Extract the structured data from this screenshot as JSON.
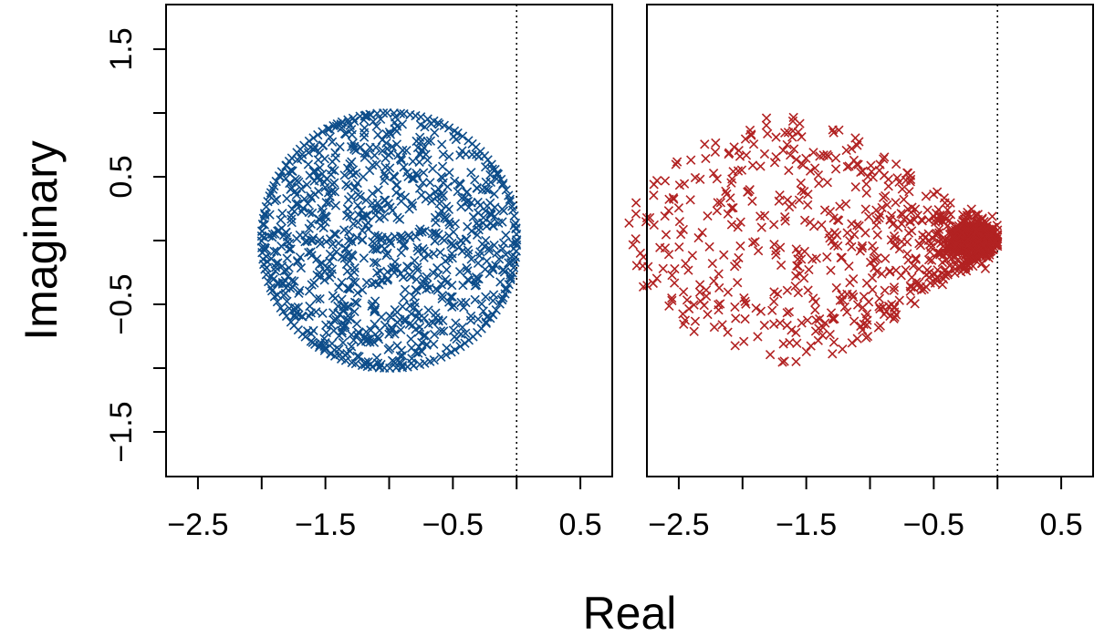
{
  "chart_data": {
    "type": "scatter",
    "xlabel": "Real",
    "ylabel": "Imaginary",
    "marker": "x",
    "panels": [
      {
        "xlim": [
          -2.75,
          0.75
        ],
        "ylim": [
          -1.85,
          1.85
        ],
        "x_ticks": [
          -2.5,
          -2,
          -1.5,
          -1,
          -0.5,
          0,
          0.5
        ],
        "x_tick_labels": [
          "−2.5",
          "",
          "−1.5",
          "",
          "−0.5",
          "",
          "0.5"
        ],
        "y_ticks": [
          -1.5,
          -1,
          -0.5,
          0,
          0.5,
          1,
          1.5
        ],
        "y_tick_labels": [
          "−1.5",
          "",
          "−0.5",
          "",
          "0.5",
          "",
          "1.5"
        ],
        "reference_line_x": 0,
        "color": "#0d4d8a",
        "series": [
          {
            "distribution": "uniform-disk",
            "center": [
              -1,
              0
            ],
            "radius": 1,
            "n_points": 1000,
            "seed": 11,
            "points": []
          }
        ]
      },
      {
        "xlim": [
          -2.75,
          0.75
        ],
        "ylim": [
          -1.85,
          1.85
        ],
        "x_ticks": [
          -2.5,
          -2,
          -1.5,
          -1,
          -0.5,
          0,
          0.5
        ],
        "x_tick_labels": [
          "−2.5",
          "",
          "−1.5",
          "",
          "−0.5",
          "",
          "0.5"
        ],
        "y_ticks": [],
        "y_tick_labels": [],
        "reference_line_x": 0,
        "color": "#b22222",
        "series": [
          {
            "distribution": "clustered-near-zero",
            "x_range": [
              -2.9,
              0
            ],
            "y_extent": 1.15,
            "dense_center": [
              -0.2,
              0
            ],
            "n_points": 1000,
            "seed": 23,
            "points": []
          }
        ]
      }
    ]
  }
}
